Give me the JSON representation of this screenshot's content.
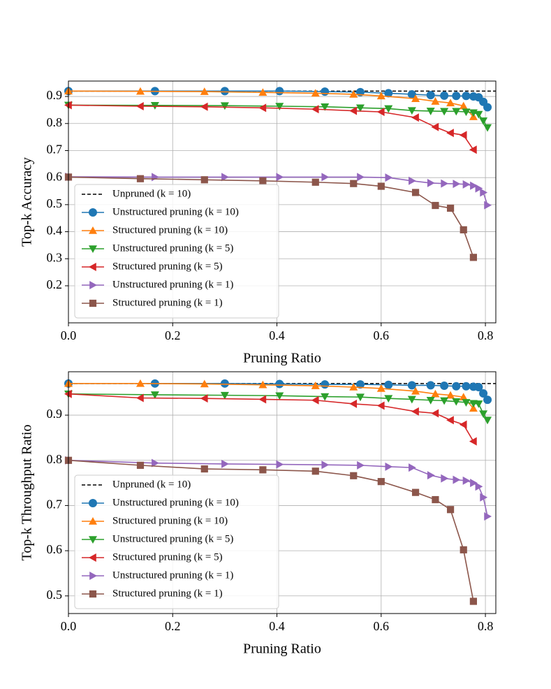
{
  "chart_data": [
    {
      "type": "line",
      "xlabel": "Pruning Ratio",
      "ylabel": "Top-k Accuracy",
      "xlim": [
        0,
        0.82
      ],
      "ylim": [
        0.063,
        0.957
      ],
      "xticks": [
        {
          "value": 0,
          "label": "0.0"
        },
        0.2,
        0.4,
        0.6,
        0.8
      ],
      "yticks": [
        0.2,
        0.3,
        0.4,
        0.5,
        0.6,
        0.7,
        0.8,
        0.9
      ],
      "grid": true,
      "legend": "lower left",
      "series": [
        {
          "name": "Unpruned (k = 10)",
          "color": "#000000",
          "linestyle": "dashed",
          "x": [
            0,
            0.82
          ],
          "values": [
            0.92,
            0.92
          ]
        },
        {
          "name": "Unstructured pruning (k = 10)",
          "color": "#1f77b4",
          "marker": "circle",
          "x": [
            0,
            0.166,
            0.3,
            0.405,
            0.492,
            0.56,
            0.614,
            0.659,
            0.695,
            0.721,
            0.744,
            0.763,
            0.777,
            0.787,
            0.796,
            0.804
          ],
          "values": [
            0.92,
            0.92,
            0.92,
            0.92,
            0.918,
            0.916,
            0.912,
            0.908,
            0.905,
            0.903,
            0.902,
            0.902,
            0.9,
            0.897,
            0.88,
            0.86
          ]
        },
        {
          "name": "Structured pruning (k = 10)",
          "color": "#ff7f0e",
          "marker": "triangle-up",
          "x": [
            0,
            0.138,
            0.261,
            0.373,
            0.474,
            0.547,
            0.6,
            0.666,
            0.704,
            0.733,
            0.758,
            0.777
          ],
          "values": [
            0.92,
            0.919,
            0.918,
            0.915,
            0.912,
            0.908,
            0.902,
            0.892,
            0.882,
            0.876,
            0.865,
            0.825
          ]
        },
        {
          "name": "Unstructured pruning (k = 5)",
          "color": "#2ca02c",
          "marker": "triangle-down",
          "x": [
            0,
            0.166,
            0.3,
            0.405,
            0.492,
            0.56,
            0.614,
            0.659,
            0.695,
            0.721,
            0.744,
            0.763,
            0.777,
            0.787,
            0.796,
            0.804
          ],
          "values": [
            0.868,
            0.867,
            0.866,
            0.864,
            0.862,
            0.858,
            0.855,
            0.848,
            0.846,
            0.845,
            0.845,
            0.843,
            0.84,
            0.834,
            0.81,
            0.785
          ]
        },
        {
          "name": "Structured pruning (k = 5)",
          "color": "#d62728",
          "marker": "triangle-left",
          "x": [
            0,
            0.138,
            0.261,
            0.373,
            0.474,
            0.547,
            0.6,
            0.666,
            0.704,
            0.733,
            0.758,
            0.777
          ],
          "values": [
            0.868,
            0.864,
            0.862,
            0.858,
            0.853,
            0.847,
            0.843,
            0.822,
            0.787,
            0.765,
            0.757,
            0.703
          ]
        },
        {
          "name": "Unstructured pruning (k = 1)",
          "color": "#9467bd",
          "marker": "triangle-right",
          "x": [
            0,
            0.166,
            0.3,
            0.405,
            0.492,
            0.56,
            0.614,
            0.659,
            0.695,
            0.721,
            0.744,
            0.763,
            0.777,
            0.787,
            0.796,
            0.804
          ],
          "values": [
            0.603,
            0.602,
            0.602,
            0.602,
            0.602,
            0.602,
            0.6,
            0.588,
            0.58,
            0.578,
            0.577,
            0.575,
            0.57,
            0.56,
            0.545,
            0.498
          ]
        },
        {
          "name": "Structured pruning (k = 1)",
          "color": "#8c564b",
          "marker": "square",
          "x": [
            0,
            0.138,
            0.261,
            0.373,
            0.474,
            0.547,
            0.6,
            0.666,
            0.704,
            0.733,
            0.758,
            0.777
          ],
          "values": [
            0.602,
            0.596,
            0.592,
            0.588,
            0.583,
            0.578,
            0.568,
            0.545,
            0.497,
            0.487,
            0.407,
            0.305
          ]
        }
      ]
    },
    {
      "type": "line",
      "xlabel": "Pruning Ratio",
      "ylabel": "Top-k Throughput Ratio",
      "xlim": [
        0,
        0.82
      ],
      "ylim": [
        0.461,
        0.996
      ],
      "xticks": [
        {
          "value": 0,
          "label": "0.0"
        },
        0.2,
        0.4,
        0.6,
        0.8
      ],
      "yticks": [
        0.5,
        0.6,
        0.7,
        0.8,
        0.9
      ],
      "grid": true,
      "legend": "lower left",
      "series": [
        {
          "name": "Unpruned (k = 10)",
          "color": "#000000",
          "linestyle": "dashed",
          "x": [
            0,
            0.82
          ],
          "values": [
            0.97,
            0.97
          ]
        },
        {
          "name": "Unstructured pruning (k = 10)",
          "color": "#1f77b4",
          "marker": "circle",
          "x": [
            0,
            0.166,
            0.3,
            0.405,
            0.492,
            0.56,
            0.614,
            0.659,
            0.695,
            0.721,
            0.744,
            0.763,
            0.777,
            0.787,
            0.796,
            0.804
          ],
          "values": [
            0.97,
            0.97,
            0.97,
            0.969,
            0.968,
            0.968,
            0.967,
            0.966,
            0.966,
            0.965,
            0.964,
            0.964,
            0.963,
            0.962,
            0.948,
            0.934
          ]
        },
        {
          "name": "Structured pruning (k = 10)",
          "color": "#ff7f0e",
          "marker": "triangle-up",
          "x": [
            0,
            0.138,
            0.261,
            0.373,
            0.474,
            0.547,
            0.6,
            0.666,
            0.704,
            0.733,
            0.758,
            0.777
          ],
          "values": [
            0.97,
            0.97,
            0.969,
            0.967,
            0.965,
            0.962,
            0.959,
            0.953,
            0.947,
            0.944,
            0.94,
            0.915
          ]
        },
        {
          "name": "Unstructured pruning (k = 5)",
          "color": "#2ca02c",
          "marker": "triangle-down",
          "x": [
            0,
            0.166,
            0.3,
            0.405,
            0.492,
            0.56,
            0.614,
            0.659,
            0.695,
            0.721,
            0.744,
            0.763,
            0.777,
            0.787,
            0.796,
            0.804
          ],
          "values": [
            0.947,
            0.945,
            0.944,
            0.943,
            0.941,
            0.94,
            0.937,
            0.935,
            0.933,
            0.932,
            0.93,
            0.928,
            0.926,
            0.925,
            0.903,
            0.889
          ]
        },
        {
          "name": "Structured pruning (k = 5)",
          "color": "#d62728",
          "marker": "triangle-left",
          "x": [
            0,
            0.138,
            0.261,
            0.373,
            0.474,
            0.547,
            0.6,
            0.666,
            0.704,
            0.733,
            0.758,
            0.777
          ],
          "values": [
            0.947,
            0.938,
            0.937,
            0.935,
            0.933,
            0.925,
            0.921,
            0.908,
            0.904,
            0.889,
            0.879,
            0.842
          ]
        },
        {
          "name": "Unstructured pruning (k = 1)",
          "color": "#9467bd",
          "marker": "triangle-right",
          "x": [
            0,
            0.166,
            0.3,
            0.405,
            0.492,
            0.56,
            0.614,
            0.659,
            0.695,
            0.721,
            0.744,
            0.763,
            0.777,
            0.787,
            0.796,
            0.804
          ],
          "values": [
            0.8,
            0.794,
            0.792,
            0.791,
            0.79,
            0.789,
            0.786,
            0.784,
            0.767,
            0.76,
            0.757,
            0.755,
            0.75,
            0.742,
            0.718,
            0.676
          ]
        },
        {
          "name": "Structured pruning (k = 1)",
          "color": "#8c564b",
          "marker": "square",
          "x": [
            0,
            0.138,
            0.261,
            0.373,
            0.474,
            0.547,
            0.6,
            0.666,
            0.704,
            0.733,
            0.758,
            0.777
          ],
          "values": [
            0.8,
            0.789,
            0.781,
            0.779,
            0.776,
            0.766,
            0.753,
            0.729,
            0.713,
            0.691,
            0.602,
            0.488
          ]
        }
      ]
    }
  ]
}
